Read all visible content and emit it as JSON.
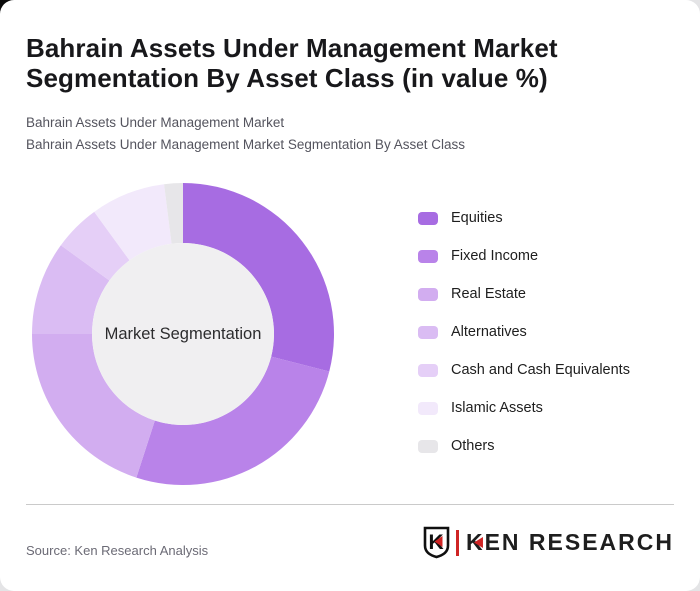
{
  "header": {
    "title_line1": "Bahrain Assets Under Management Market",
    "title_line2": "Segmentation By Asset Class (in value %)",
    "subtitle_line1": "Bahrain Assets Under Management Market",
    "subtitle_line2": "Bahrain Assets Under Management Market Segmentation By Asset Class"
  },
  "chart_data": {
    "type": "pie",
    "variant": "donut",
    "title": "Bahrain Assets Under Management Market Segmentation By Asset Class (in value %)",
    "center_label": "Market Segmentation",
    "unit": "%",
    "categories": [
      "Equities",
      "Fixed Income",
      "Real Estate",
      "Alternatives",
      "Cash and Cash Equivalents",
      "Islamic Assets",
      "Others"
    ],
    "values": [
      29,
      26,
      20,
      10,
      5,
      8,
      2
    ],
    "colors": [
      "#a76ce2",
      "#b983e9",
      "#d2adf0",
      "#dabcf3",
      "#e5cff7",
      "#f2e9fb",
      "#e7e6e9"
    ],
    "hole_color": "#f0eff1",
    "start_angle_deg": 0,
    "direction": "clockwise",
    "legend_position": "right",
    "data_labels": "none"
  },
  "footer": {
    "source": "Source: Ken Research Analysis",
    "logo_shield_letter": "K",
    "logo_wordmark": "KEN RESEARCH",
    "logo_accent_color": "#cf2424"
  }
}
